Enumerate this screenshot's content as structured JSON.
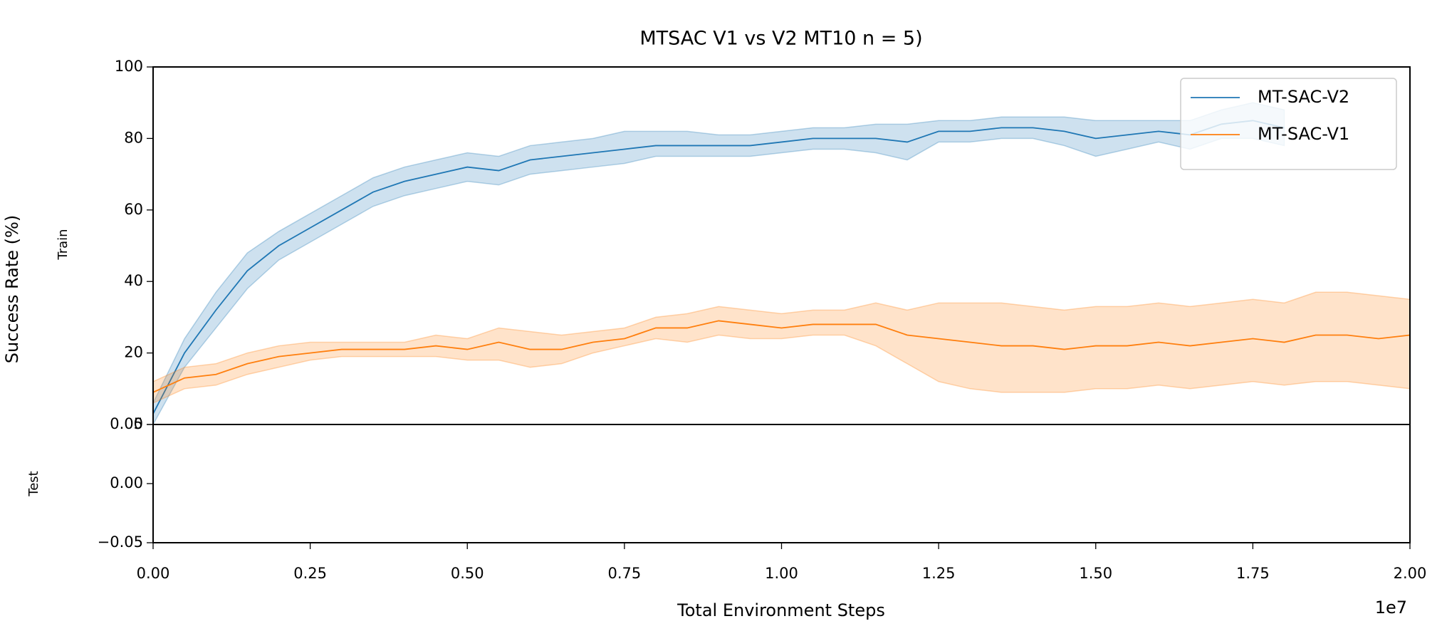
{
  "chart_data": [
    {
      "type": "line",
      "title": "MTSAC V1 vs V2 MT10 n = 5)",
      "y_label": "Success Rate (%)",
      "panel_label": "Train",
      "xlim": [
        0,
        2
      ],
      "ylim": [
        0,
        100
      ],
      "yticks": [
        0,
        20,
        40,
        60,
        80,
        100
      ],
      "legend": "upper right",
      "x": [
        0,
        0.05,
        0.1,
        0.15,
        0.2,
        0.25,
        0.3,
        0.35,
        0.4,
        0.45,
        0.5,
        0.55,
        0.6,
        0.65,
        0.7,
        0.75,
        0.8,
        0.85,
        0.9,
        0.95,
        1.0,
        1.05,
        1.1,
        1.15,
        1.2,
        1.25,
        1.3,
        1.35,
        1.4,
        1.45,
        1.5,
        1.55,
        1.6,
        1.65,
        1.7,
        1.75,
        1.8,
        1.85,
        1.9,
        1.95,
        2.0
      ],
      "series": [
        {
          "name": "MT-SAC-V2",
          "color": "#1f77b4",
          "values": [
            3,
            20,
            32,
            43,
            50,
            55,
            60,
            65,
            68,
            70,
            72,
            71,
            74,
            75,
            76,
            77,
            78,
            78,
            78,
            78,
            79,
            80,
            80,
            80,
            79,
            82,
            82,
            83,
            83,
            82,
            80,
            81,
            82,
            81,
            84,
            85,
            83,
            null,
            null,
            null,
            null
          ],
          "lower": [
            0,
            16,
            27,
            38,
            46,
            51,
            56,
            61,
            64,
            66,
            68,
            67,
            70,
            71,
            72,
            73,
            75,
            75,
            75,
            75,
            76,
            77,
            77,
            76,
            74,
            79,
            79,
            80,
            80,
            78,
            75,
            77,
            79,
            77,
            80,
            80,
            78,
            null,
            null,
            null,
            null
          ],
          "upper": [
            6,
            24,
            37,
            48,
            54,
            59,
            64,
            69,
            72,
            74,
            76,
            75,
            78,
            79,
            80,
            82,
            82,
            82,
            81,
            81,
            82,
            83,
            83,
            84,
            84,
            85,
            85,
            86,
            86,
            86,
            85,
            85,
            85,
            85,
            88,
            90,
            88,
            null,
            null,
            null,
            null
          ]
        },
        {
          "name": "MT-SAC-V1",
          "color": "#ff7f0e",
          "values": [
            9,
            13,
            14,
            17,
            19,
            20,
            21,
            21,
            21,
            22,
            21,
            23,
            21,
            21,
            23,
            24,
            27,
            27,
            29,
            28,
            27,
            28,
            28,
            28,
            25,
            24,
            23,
            22,
            22,
            21,
            22,
            22,
            23,
            22,
            23,
            24,
            23,
            25,
            25,
            24,
            25
          ],
          "lower": [
            6,
            10,
            11,
            14,
            16,
            18,
            19,
            19,
            19,
            19,
            18,
            18,
            16,
            17,
            20,
            22,
            24,
            23,
            25,
            24,
            24,
            25,
            25,
            22,
            17,
            12,
            10,
            9,
            9,
            9,
            10,
            10,
            11,
            10,
            11,
            12,
            11,
            12,
            12,
            11,
            10
          ],
          "upper": [
            12,
            16,
            17,
            20,
            22,
            23,
            23,
            23,
            23,
            25,
            24,
            27,
            26,
            25,
            26,
            27,
            30,
            31,
            33,
            32,
            31,
            32,
            32,
            34,
            32,
            34,
            34,
            34,
            33,
            32,
            33,
            33,
            34,
            33,
            34,
            35,
            34,
            37,
            37,
            36,
            35
          ]
        }
      ]
    },
    {
      "type": "line",
      "panel_label": "Test",
      "x_label": "Total Environment Steps",
      "x_offset_label": "1e7",
      "xlim": [
        0,
        2
      ],
      "ylim": [
        -0.05,
        0.05
      ],
      "yticks": [
        {
          "value": -0.05,
          "label": "−0.05"
        },
        {
          "value": 0,
          "label": "0.00"
        },
        {
          "value": 0.05,
          "label": "0.05"
        }
      ],
      "xticks": [
        {
          "value": 0,
          "label": "0.00"
        },
        {
          "value": 0.25,
          "label": "0.25"
        },
        {
          "value": 0.5,
          "label": "0.50"
        },
        {
          "value": 0.75,
          "label": "0.75"
        },
        {
          "value": 1.0,
          "label": "1.00"
        },
        {
          "value": 1.25,
          "label": "1.25"
        },
        {
          "value": 1.5,
          "label": "1.50"
        },
        {
          "value": 1.75,
          "label": "1.75"
        },
        {
          "value": 2.0,
          "label": "2.00"
        }
      ],
      "series": []
    }
  ]
}
